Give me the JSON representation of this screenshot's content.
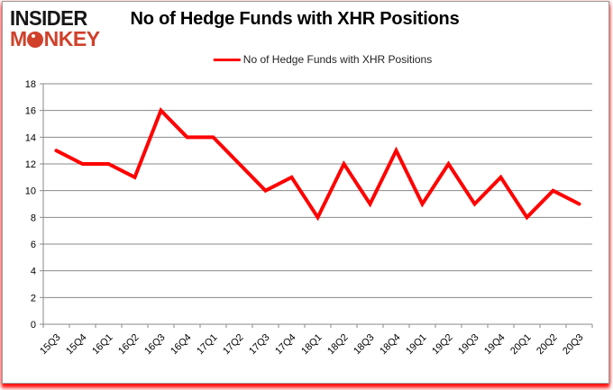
{
  "brand": {
    "line1": "INSIDER",
    "line2_prefix": "M",
    "line2_suffix": "NKEY",
    "color": "#d0402b"
  },
  "header": {
    "title": "No of Hedge Funds with XHR Positions"
  },
  "legend": {
    "label": "No of Hedge Funds with XHR Positions",
    "line_color": "#ff0000"
  },
  "chart_data": {
    "type": "line",
    "title": "No of Hedge Funds with XHR Positions",
    "categories": [
      "15Q3",
      "15Q4",
      "16Q1",
      "16Q2",
      "16Q3",
      "16Q4",
      "17Q1",
      "17Q2",
      "17Q3",
      "17Q4",
      "18Q1",
      "18Q2",
      "18Q3",
      "18Q4",
      "19Q1",
      "19Q2",
      "19Q3",
      "19Q4",
      "20Q1",
      "20Q2",
      "20Q3"
    ],
    "series": [
      {
        "name": "No of Hedge Funds with XHR Positions",
        "color": "#ff0000",
        "values": [
          13,
          12,
          12,
          11,
          16,
          14,
          14,
          12,
          10,
          11,
          8,
          12,
          9,
          13,
          9,
          12,
          9,
          11,
          8,
          10,
          9
        ]
      }
    ],
    "xlabel": "",
    "ylabel": "",
    "ylim": [
      0,
      18
    ],
    "y_ticks": [
      0,
      2,
      4,
      6,
      8,
      10,
      12,
      14,
      16,
      18
    ],
    "grid": true,
    "legend_position": "top"
  },
  "colors": {
    "line": "#ff0000",
    "grid": "#8a8a8a",
    "axis": "#8a8a8a",
    "brand_red": "#d0402b",
    "frame_border": "#9b9b9b",
    "glow": "#ff0000"
  }
}
